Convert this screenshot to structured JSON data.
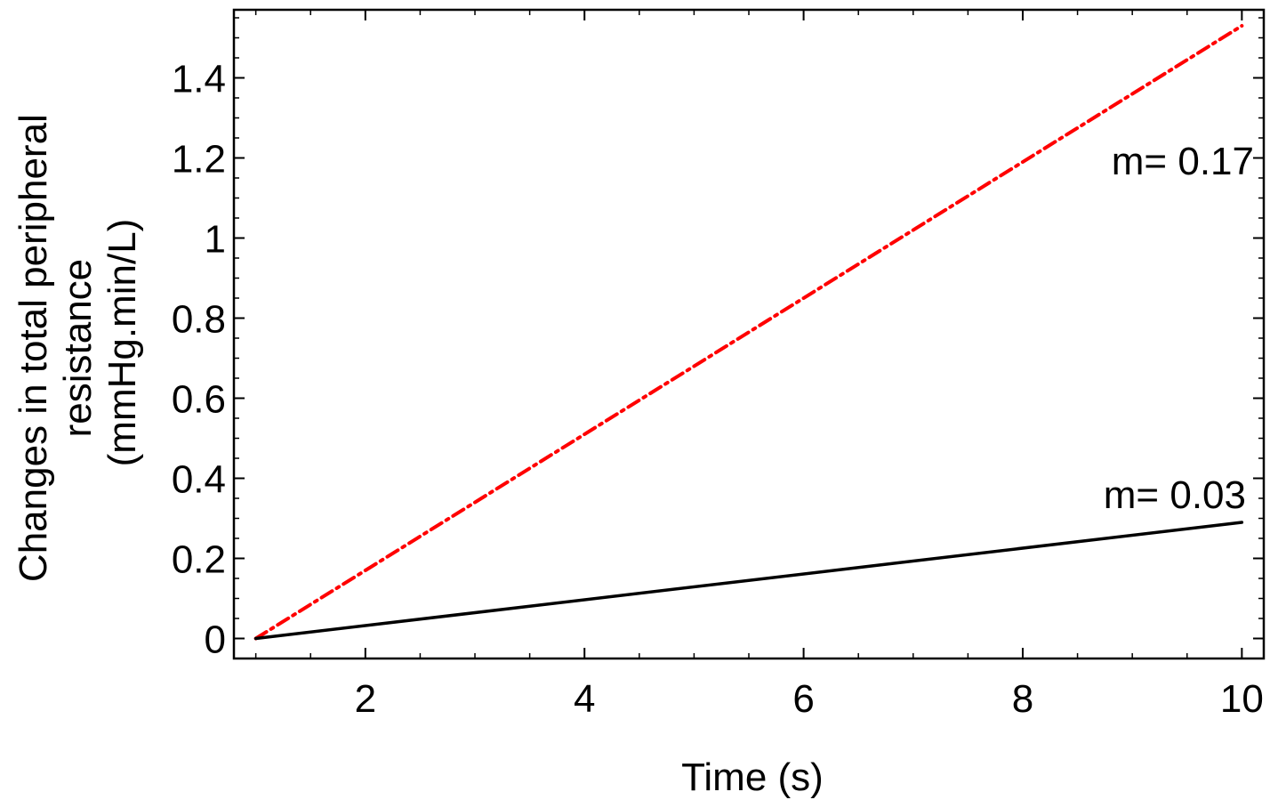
{
  "chart_data": {
    "type": "line",
    "title": "",
    "xlabel": "Time (s)",
    "ylabel_lines": [
      "Changes in total peripheral",
      "resistance",
      "(mmHg.min/L)"
    ],
    "xlim": [
      0.8,
      10.2
    ],
    "ylim": [
      -0.05,
      1.57
    ],
    "xticks": [
      2,
      4,
      6,
      8,
      10
    ],
    "xtick_labels": [
      "2",
      "4",
      "6",
      "8",
      "10"
    ],
    "yticks": [
      0,
      0.2,
      0.4,
      0.6,
      0.8,
      1,
      1.2,
      1.4
    ],
    "ytick_labels": [
      "0",
      "0.2",
      "0.4",
      "0.6",
      "0.8",
      "1",
      "1.2",
      "1.4"
    ],
    "grid": false,
    "legend": "none",
    "series": [
      {
        "x": [
          1,
          10
        ],
        "values": [
          0,
          1.53
        ],
        "color": "#ff0000",
        "style": "dash-dot",
        "annotation": "m= 0.17"
      },
      {
        "x": [
          1,
          10
        ],
        "values": [
          0,
          0.29
        ],
        "color": "#000000",
        "style": "solid",
        "annotation": "m= 0.03"
      }
    ]
  }
}
